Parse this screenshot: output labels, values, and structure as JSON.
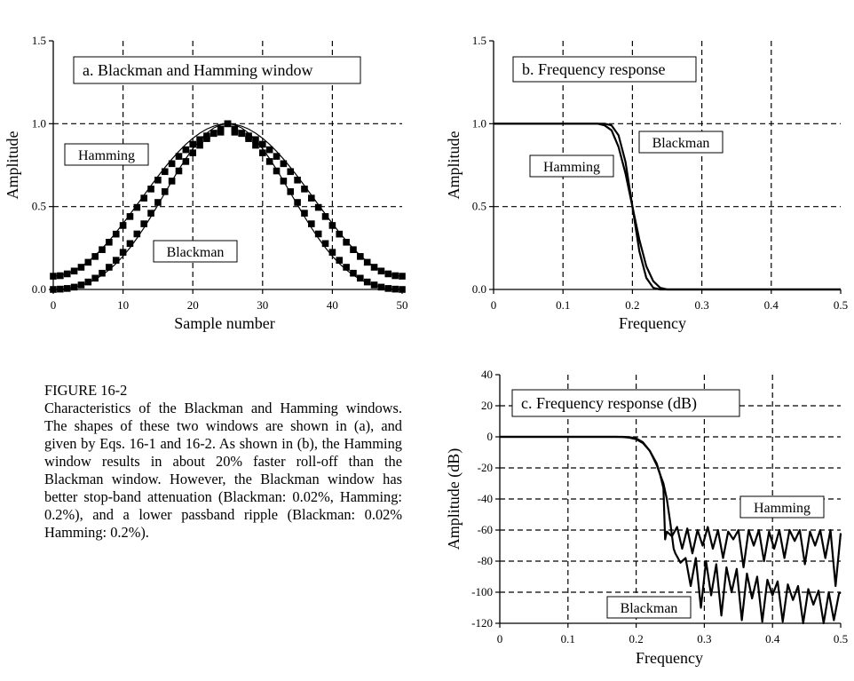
{
  "figure": {
    "label": "FIGURE 16-2",
    "caption": "Characteristics of the Blackman and Hamming windows.  The shapes of these two windows are shown in (a), and given by Eqs. 16-1 and 16-2.  As shown in (b), the Hamming window results in about 20% faster roll-off than the Blackman window.  However, the Blackman window has better stop-band attenuation (Blackman: 0.02%, Hamming: 0.2%), and a lower passband ripple (Blackman: 0.02% Hamming: 0.2%)."
  },
  "chart_data": [
    {
      "type": "scatter",
      "title": "a.  Blackman and Hamming window",
      "xlabel": "Sample number",
      "ylabel": "Amplitude",
      "xlim": [
        0,
        50
      ],
      "ylim": [
        0,
        1.5
      ],
      "xticks": [
        "0",
        "10",
        "20",
        "30",
        "40",
        "50"
      ],
      "yticks": [
        "0.0",
        "0.5",
        "1.0",
        "1.5"
      ],
      "grid": "dashed",
      "series": [
        {
          "name": "Hamming",
          "window": "hamming",
          "M": 50,
          "x": [
            0,
            1,
            2,
            3,
            4,
            5,
            6,
            7,
            8,
            9,
            10,
            11,
            12,
            13,
            14,
            15,
            16,
            17,
            18,
            19,
            20,
            21,
            22,
            23,
            24,
            25,
            26,
            27,
            28,
            29,
            30,
            31,
            32,
            33,
            34,
            35,
            36,
            37,
            38,
            39,
            40,
            41,
            42,
            43,
            44,
            45,
            46,
            47,
            48,
            49,
            50
          ],
          "values": [
            0.08,
            0.083,
            0.094,
            0.111,
            0.134,
            0.164,
            0.199,
            0.24,
            0.285,
            0.334,
            0.386,
            0.44,
            0.495,
            0.551,
            0.606,
            0.66,
            0.711,
            0.759,
            0.803,
            0.843,
            0.876,
            0.904,
            0.926,
            0.941,
            0.949,
            1.0,
            0.949,
            0.941,
            0.926,
            0.904,
            0.876,
            0.843,
            0.803,
            0.759,
            0.711,
            0.66,
            0.606,
            0.551,
            0.495,
            0.44,
            0.386,
            0.334,
            0.285,
            0.24,
            0.199,
            0.164,
            0.134,
            0.111,
            0.094,
            0.083,
            0.08
          ]
        },
        {
          "name": "Blackman",
          "window": "blackman",
          "M": 50,
          "x": [
            0,
            1,
            2,
            3,
            4,
            5,
            6,
            7,
            8,
            9,
            10,
            11,
            12,
            13,
            14,
            15,
            16,
            17,
            18,
            19,
            20,
            21,
            22,
            23,
            24,
            25,
            26,
            27,
            28,
            29,
            30,
            31,
            32,
            33,
            34,
            35,
            36,
            37,
            38,
            39,
            40,
            41,
            42,
            43,
            44,
            45,
            46,
            47,
            48,
            49,
            50
          ],
          "values": [
            0.0,
            0.002,
            0.006,
            0.014,
            0.027,
            0.045,
            0.068,
            0.098,
            0.134,
            0.176,
            0.224,
            0.277,
            0.335,
            0.396,
            0.46,
            0.525,
            0.59,
            0.654,
            0.715,
            0.772,
            0.824,
            0.87,
            0.91,
            0.943,
            0.968,
            1.0,
            0.968,
            0.943,
            0.91,
            0.87,
            0.824,
            0.772,
            0.715,
            0.654,
            0.59,
            0.525,
            0.46,
            0.396,
            0.335,
            0.277,
            0.224,
            0.176,
            0.134,
            0.098,
            0.068,
            0.045,
            0.027,
            0.014,
            0.006,
            0.002,
            0.0
          ]
        }
      ]
    },
    {
      "type": "line",
      "title": "b.  Frequency response",
      "xlabel": "Frequency",
      "ylabel": "Amplitude",
      "xlim": [
        0,
        0.5
      ],
      "ylim": [
        0,
        1.5
      ],
      "xticks": [
        "0",
        "0.1",
        "0.2",
        "0.3",
        "0.4",
        "0.5"
      ],
      "yticks": [
        "0.0",
        "0.5",
        "1.0",
        "1.5"
      ],
      "grid": "dashed",
      "series": [
        {
          "name": "Hamming",
          "x": [
            0,
            0.16,
            0.17,
            0.18,
            0.19,
            0.2,
            0.21,
            0.22,
            0.23,
            0.24,
            0.5
          ],
          "values": [
            1.0,
            1.0,
            0.99,
            0.93,
            0.77,
            0.5,
            0.23,
            0.07,
            0.01,
            0.0,
            0.0
          ]
        },
        {
          "name": "Blackman",
          "x": [
            0,
            0.15,
            0.16,
            0.17,
            0.18,
            0.19,
            0.2,
            0.21,
            0.22,
            0.23,
            0.24,
            0.25,
            0.5
          ],
          "values": [
            1.0,
            1.0,
            0.99,
            0.96,
            0.86,
            0.7,
            0.5,
            0.3,
            0.14,
            0.05,
            0.01,
            0.0,
            0.0
          ]
        }
      ]
    },
    {
      "type": "line",
      "title": "c.  Frequency response (dB)",
      "xlabel": "Frequency",
      "ylabel": "Amplitude (dB)",
      "xlim": [
        0,
        0.5
      ],
      "ylim": [
        -120,
        40
      ],
      "xticks": [
        "0",
        "0.1",
        "0.2",
        "0.3",
        "0.4",
        "0.5"
      ],
      "yticks": [
        "40",
        "20",
        "0",
        "-20",
        "-40",
        "-60",
        "-80",
        "-100",
        "-120"
      ],
      "grid": "dashed",
      "series": [
        {
          "name": "Hamming",
          "x": [
            0,
            0.17,
            0.18,
            0.19,
            0.2,
            0.21,
            0.22,
            0.23,
            0.235,
            0.24,
            0.2425,
            0.245,
            0.2525,
            0.26,
            0.2675,
            0.275,
            0.2825,
            0.29,
            0.2975,
            0.305,
            0.3125,
            0.32,
            0.3275,
            0.335,
            0.3425,
            0.35,
            0.3575,
            0.365,
            0.3725,
            0.38,
            0.3875,
            0.395,
            0.4025,
            0.41,
            0.4175,
            0.425,
            0.4325,
            0.44,
            0.4475,
            0.455,
            0.4625,
            0.47,
            0.4775,
            0.485,
            0.4925,
            0.5
          ],
          "values": [
            0,
            0,
            -0.1,
            -0.5,
            -1.5,
            -4,
            -9,
            -17,
            -24,
            -33,
            -66,
            -61,
            -64,
            -58,
            -72,
            -59,
            -75,
            -60,
            -70,
            -58,
            -72,
            -60,
            -78,
            -61,
            -66,
            -60,
            -84,
            -60,
            -70,
            -60,
            -80,
            -61,
            -72,
            -60,
            -78,
            -60,
            -67,
            -60,
            -82,
            -61,
            -70,
            -60,
            -78,
            -60,
            -96,
            -62
          ]
        },
        {
          "name": "Blackman",
          "x": [
            0,
            0.18,
            0.19,
            0.2,
            0.21,
            0.22,
            0.23,
            0.24,
            0.245,
            0.25,
            0.255,
            0.2575,
            0.265,
            0.2725,
            0.28,
            0.2875,
            0.295,
            0.3025,
            0.31,
            0.3175,
            0.325,
            0.3325,
            0.34,
            0.3475,
            0.355,
            0.3625,
            0.37,
            0.3775,
            0.385,
            0.3925,
            0.4,
            0.4075,
            0.415,
            0.4225,
            0.43,
            0.4375,
            0.445,
            0.4525,
            0.46,
            0.4675,
            0.475,
            0.4825,
            0.49,
            0.4975,
            0.5
          ],
          "values": [
            0,
            0,
            -0.2,
            -1,
            -3.5,
            -9,
            -18,
            -30,
            -40,
            -55,
            -72,
            -75,
            -81,
            -78,
            -96,
            -78,
            -110,
            -80,
            -102,
            -82,
            -115,
            -84,
            -100,
            -85,
            -118,
            -88,
            -104,
            -90,
            -119,
            -92,
            -102,
            -93,
            -119,
            -95,
            -105,
            -96,
            -120,
            -98,
            -108,
            -99,
            -120,
            -100,
            -118,
            -101,
            -100
          ]
        }
      ]
    }
  ]
}
